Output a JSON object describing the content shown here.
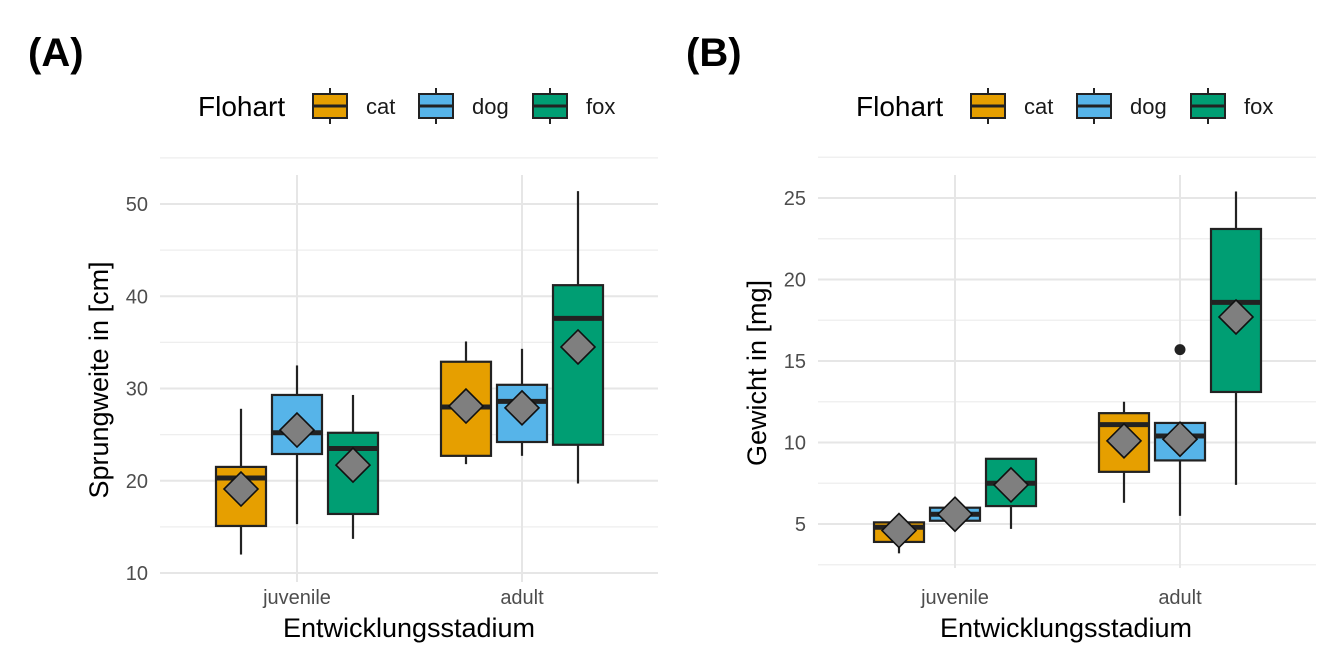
{
  "panels": [
    {
      "tag": "(A)",
      "legend": {
        "title": "Flohart",
        "items": [
          "cat",
          "dog",
          "fox"
        ]
      },
      "xlabel": "Entwicklungsstadium",
      "ylabel": "Sprungweite in [cm]",
      "ytick_labels": [
        "10",
        "20",
        "30",
        "40",
        "50"
      ],
      "xtick_labels": [
        "juvenile",
        "adult"
      ]
    },
    {
      "tag": "(B)",
      "legend": {
        "title": "Flohart",
        "items": [
          "cat",
          "dog",
          "fox"
        ]
      },
      "xlabel": "Entwicklungsstadium",
      "ylabel": "Gewicht in [mg]",
      "ytick_labels": [
        "5",
        "10",
        "15",
        "20",
        "25"
      ],
      "xtick_labels": [
        "juvenile",
        "adult"
      ]
    }
  ],
  "colors": {
    "cat": "#E69F00",
    "dog": "#56B4E9",
    "fox": "#009E73",
    "mean_marker": "#7f7f7f"
  },
  "chart_data": [
    {
      "type": "boxplot",
      "title": "",
      "xlabel": "Entwicklungsstadium",
      "ylabel": "Sprungweite in [cm]",
      "categories": [
        "juvenile",
        "adult"
      ],
      "ylim": [
        9.8,
        53
      ],
      "yticks": [
        10,
        20,
        30,
        40,
        50
      ],
      "grid": true,
      "legend_position": "top",
      "series": [
        {
          "name": "cat",
          "boxes": [
            {
              "min": 12,
              "q1": 15.1,
              "median": 20.3,
              "q3": 21.5,
              "max": 27.8,
              "mean": 19.1,
              "outliers": []
            },
            {
              "min": 21.8,
              "q1": 22.7,
              "median": 28.0,
              "q3": 32.9,
              "max": 35.1,
              "mean": 28.1,
              "outliers": []
            }
          ]
        },
        {
          "name": "dog",
          "boxes": [
            {
              "min": 15.3,
              "q1": 22.9,
              "median": 25.2,
              "q3": 29.3,
              "max": 32.5,
              "mean": 25.5,
              "outliers": []
            },
            {
              "min": 22.7,
              "q1": 24.2,
              "median": 28.6,
              "q3": 30.4,
              "max": 34.3,
              "mean": 27.9,
              "outliers": []
            }
          ]
        },
        {
          "name": "fox",
          "boxes": [
            {
              "min": 13.7,
              "q1": 16.4,
              "median": 23.5,
              "q3": 25.2,
              "max": 29.3,
              "mean": 21.7,
              "outliers": []
            },
            {
              "min": 19.7,
              "q1": 23.9,
              "median": 37.6,
              "q3": 41.2,
              "max": 51.4,
              "mean": 34.5,
              "outliers": []
            }
          ]
        }
      ]
    },
    {
      "type": "boxplot",
      "title": "",
      "xlabel": "Entwicklungsstadium",
      "ylabel": "Gewicht in [mg]",
      "categories": [
        "juvenile",
        "adult"
      ],
      "ylim": [
        2.5,
        26.2
      ],
      "yticks": [
        5,
        10,
        15,
        20,
        25
      ],
      "grid": true,
      "legend_position": "top",
      "series": [
        {
          "name": "cat",
          "boxes": [
            {
              "min": 3.2,
              "q1": 3.9,
              "median": 4.8,
              "q3": 5.1,
              "max": 5.1,
              "mean": 4.6,
              "outliers": []
            },
            {
              "min": 6.3,
              "q1": 8.2,
              "median": 11.1,
              "q3": 11.8,
              "max": 12.5,
              "mean": 10.1,
              "outliers": []
            }
          ]
        },
        {
          "name": "dog",
          "boxes": [
            {
              "min": 5.2,
              "q1": 5.2,
              "median": 5.6,
              "q3": 6.0,
              "max": 6.0,
              "mean": 5.6,
              "outliers": []
            },
            {
              "min": 5.5,
              "q1": 8.9,
              "median": 10.4,
              "q3": 11.2,
              "max": 11.2,
              "mean": 10.2,
              "outliers": [
                15.7
              ]
            }
          ]
        },
        {
          "name": "fox",
          "boxes": [
            {
              "min": 4.7,
              "q1": 6.1,
              "median": 7.5,
              "q3": 9.0,
              "max": 9.0,
              "mean": 7.4,
              "outliers": []
            },
            {
              "min": 7.4,
              "q1": 13.1,
              "median": 18.6,
              "q3": 23.1,
              "max": 25.4,
              "mean": 17.7,
              "outliers": []
            }
          ]
        }
      ]
    }
  ]
}
